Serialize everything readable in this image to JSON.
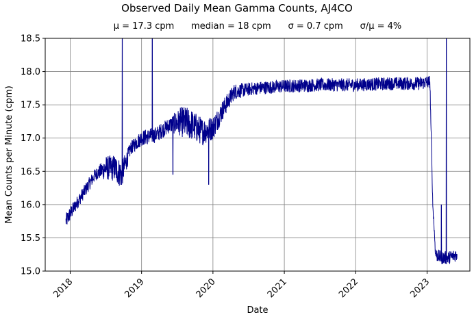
{
  "chart_data": {
    "type": "line",
    "title": "Observed Daily Mean Gamma Counts, AJ4CO",
    "subtitle": "μ = 17.3 cpm      median = 18 cpm      σ = 0.7 cpm      σ/μ = 4%",
    "xlabel": "Date",
    "ylabel": "Mean Counts per Minute (cpm)",
    "x_ticks": [
      "2018",
      "2019",
      "2020",
      "2021",
      "2022",
      "2023"
    ],
    "y_ticks": [
      "15.0",
      "15.5",
      "16.0",
      "16.5",
      "17.0",
      "17.5",
      "18.0",
      "18.5"
    ],
    "xlim": [
      2017.65,
      2023.6
    ],
    "ylim": [
      15.0,
      18.5
    ],
    "grid": true,
    "line_color": "#00008b",
    "grid_color": "#808080",
    "series": [
      {
        "trend_x": [
          2017.94,
          2018.05,
          2018.2,
          2018.35,
          2018.5,
          2018.62,
          2018.72,
          2018.85,
          2019.0,
          2019.2,
          2019.4,
          2019.55,
          2019.7,
          2019.85,
          2020.0,
          2020.15,
          2020.3,
          2020.6,
          2021.0,
          2021.5,
          2022.0,
          2022.5,
          2022.9,
          2023.04,
          2023.08,
          2023.12,
          2023.2,
          2023.3,
          2023.42
        ],
        "trend_y": [
          15.75,
          15.95,
          16.2,
          16.45,
          16.55,
          16.55,
          16.45,
          16.85,
          17.0,
          17.05,
          17.2,
          17.25,
          17.2,
          17.1,
          17.15,
          17.45,
          17.7,
          17.75,
          17.78,
          17.8,
          17.8,
          17.82,
          17.82,
          17.85,
          16.0,
          15.25,
          15.2,
          15.2,
          15.25
        ],
        "noise_x": [
          2017.94,
          2018.1,
          2018.4,
          2018.5,
          2018.7,
          2018.85,
          2019.0,
          2019.4,
          2019.6,
          2020.0,
          2020.3,
          2020.5,
          2022.9,
          2023.04,
          2023.08,
          2023.12,
          2023.42
        ],
        "noise_y": [
          0.12,
          0.1,
          0.1,
          0.18,
          0.22,
          0.1,
          0.12,
          0.12,
          0.25,
          0.18,
          0.12,
          0.1,
          0.1,
          0.1,
          0.05,
          0.1,
          0.1
        ],
        "spikes": [
          {
            "x": 2018.73,
            "y": 18.5
          },
          {
            "x": 2019.15,
            "y": 18.5
          },
          {
            "x": 2019.44,
            "y": 16.45
          },
          {
            "x": 2019.94,
            "y": 16.3
          },
          {
            "x": 2023.27,
            "y": 18.5
          },
          {
            "x": 2023.2,
            "y": 16.0
          }
        ]
      }
    ]
  }
}
